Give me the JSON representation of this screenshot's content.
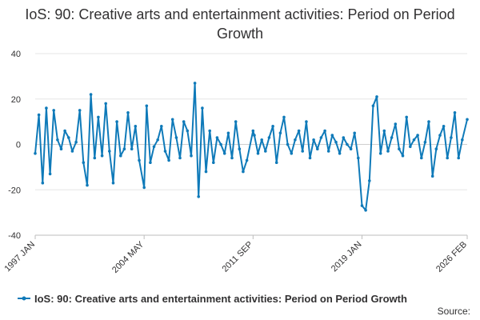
{
  "chart_data": {
    "type": "line",
    "title": "IoS: 90: Creative arts and entertainment activities: Period on Period Growth",
    "xlabel": "",
    "ylabel": "",
    "ylim": [
      -40,
      40
    ],
    "yticks": [
      -40,
      -20,
      0,
      20,
      40
    ],
    "x_range": [
      "1997 JAN",
      "2026 FEB"
    ],
    "xticks": [
      "1997 JAN",
      "2004 MAY",
      "2011 SEP",
      "2019 JAN",
      "2026 FEB"
    ],
    "grid": true,
    "legend_position": "bottom",
    "series": [
      {
        "name": "IoS: 90: Creative arts and entertainment activities: Period on Period Growth",
        "color": "#0F7AB9",
        "x": [
          "1997 JAN",
          "1997 APR",
          "1997 JUL",
          "1997 OCT",
          "1998 JAN",
          "1998 APR",
          "1998 JUL",
          "1998 OCT",
          "1999 JAN",
          "1999 APR",
          "1999 JUL",
          "1999 OCT",
          "2000 JAN",
          "2000 APR",
          "2000 JUL",
          "2000 OCT",
          "2001 JAN",
          "2001 APR",
          "2001 JUL",
          "2001 OCT",
          "2002 JAN",
          "2002 APR",
          "2002 JUL",
          "2002 OCT",
          "2003 JAN",
          "2003 APR",
          "2003 JUL",
          "2003 OCT",
          "2004 JAN",
          "2004 MAY",
          "2004 JUL",
          "2004 OCT",
          "2005 JAN",
          "2005 APR",
          "2005 JUL",
          "2005 OCT",
          "2006 JAN",
          "2006 APR",
          "2006 JUL",
          "2006 OCT",
          "2007 JAN",
          "2007 APR",
          "2007 JUL",
          "2007 OCT",
          "2008 JAN",
          "2008 APR",
          "2008 JUL",
          "2008 OCT",
          "2009 JAN",
          "2009 APR",
          "2009 JUL",
          "2009 OCT",
          "2010 JAN",
          "2010 APR",
          "2010 JUL",
          "2010 OCT",
          "2011 JAN",
          "2011 APR",
          "2011 SEP",
          "2011 OCT",
          "2012 JAN",
          "2012 APR",
          "2012 JUL",
          "2012 OCT",
          "2013 JAN",
          "2013 APR",
          "2013 JUL",
          "2013 OCT",
          "2014 JAN",
          "2014 APR",
          "2014 JUL",
          "2014 OCT",
          "2015 JAN",
          "2015 APR",
          "2015 JUL",
          "2015 OCT",
          "2016 JAN",
          "2016 APR",
          "2016 JUL",
          "2016 OCT",
          "2017 JAN",
          "2017 APR",
          "2017 JUL",
          "2017 OCT",
          "2018 JAN",
          "2018 APR",
          "2018 JUL",
          "2018 OCT",
          "2019 JAN",
          "2019 APR",
          "2019 JUL",
          "2019 OCT",
          "2020 JAN",
          "2020 APR",
          "2020 JUL",
          "2020 OCT",
          "2021 JAN",
          "2021 APR",
          "2021 JUL",
          "2021 OCT",
          "2022 JAN",
          "2022 APR",
          "2022 JUL",
          "2022 OCT",
          "2023 JAN",
          "2023 APR",
          "2023 JUL",
          "2023 OCT",
          "2024 JAN",
          "2024 APR",
          "2024 JUL",
          "2024 OCT",
          "2025 JAN",
          "2025 APR",
          "2025 JUL",
          "2025 OCT",
          "2026 FEB"
        ],
        "values": [
          -4,
          13,
          -17,
          16,
          -13,
          15,
          2,
          -2,
          6,
          3,
          -3,
          1,
          15,
          -8,
          -18,
          22,
          -6,
          12,
          -5,
          18,
          -3,
          -17,
          10,
          -5,
          -2,
          14,
          -2,
          8,
          -7,
          -19,
          17,
          -8,
          -1,
          2,
          8,
          -3,
          -7,
          11,
          3,
          -6,
          10,
          6,
          -5,
          27,
          -23,
          16,
          -12,
          6,
          -8,
          3,
          0,
          -4,
          5,
          -6,
          10,
          -2,
          -12,
          -7,
          6,
          4,
          -4,
          2,
          -3,
          3,
          8,
          -8,
          5,
          12,
          0,
          -4,
          2,
          6,
          -3,
          10,
          -6,
          2,
          -2,
          3,
          6,
          -3,
          4,
          1,
          -4,
          3,
          0,
          -2,
          5,
          -6,
          -27,
          -29,
          -16,
          17,
          21,
          -4,
          6,
          -3,
          3,
          9,
          -2,
          -5,
          12,
          -1,
          2,
          4,
          -6,
          1,
          10,
          -14,
          -2,
          4,
          8,
          -6,
          3,
          14,
          -6,
          2,
          11
        ]
      }
    ],
    "legend": [
      "IoS: 90: Creative arts and entertainment activities: Period on Period Growth"
    ],
    "source_label": "Source:"
  }
}
